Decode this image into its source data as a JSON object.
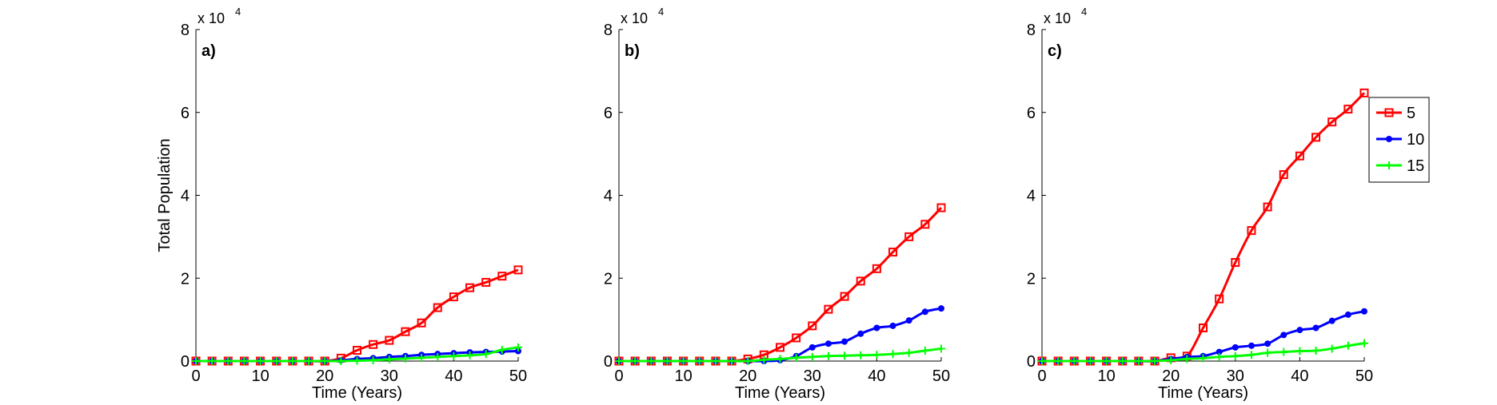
{
  "chart_data": [
    {
      "type": "line",
      "panel_label": "a)",
      "exponent_label": "x 10",
      "exponent_power": "4",
      "xlabel": "Time (Years)",
      "ylabel": "Total Population",
      "xlim": [
        0,
        50
      ],
      "ylim": [
        0,
        8
      ],
      "xticks": [
        0,
        10,
        20,
        30,
        40,
        50
      ],
      "yticks": [
        0,
        2,
        4,
        6,
        8
      ],
      "grid": false,
      "legend": null,
      "series": [
        {
          "name": "5",
          "color": "#ff0000",
          "marker": "square",
          "x": [
            0,
            2.5,
            5,
            7.5,
            10,
            12.5,
            15,
            17.5,
            20,
            22.5,
            25,
            27.5,
            30,
            32.5,
            35,
            37.5,
            40,
            42.5,
            45,
            47.5,
            50
          ],
          "y": [
            0,
            0,
            0,
            0,
            0,
            0,
            0,
            0,
            0,
            0.07,
            0.26,
            0.4,
            0.5,
            0.71,
            0.92,
            1.29,
            1.55,
            1.77,
            1.9,
            2.05,
            2.2
          ]
        },
        {
          "name": "10",
          "color": "#0000ff",
          "marker": "dot",
          "x": [
            0,
            2.5,
            5,
            7.5,
            10,
            12.5,
            15,
            17.5,
            20,
            22.5,
            25,
            27.5,
            30,
            32.5,
            35,
            37.5,
            40,
            42.5,
            45,
            47.5,
            50
          ],
          "y": [
            0,
            0,
            0,
            0,
            0,
            0,
            0,
            0,
            0,
            0.02,
            0.05,
            0.07,
            0.1,
            0.12,
            0.15,
            0.17,
            0.19,
            0.21,
            0.22,
            0.23,
            0.24
          ]
        },
        {
          "name": "15",
          "color": "#00ff00",
          "marker": "plus",
          "x": [
            0,
            2.5,
            5,
            7.5,
            10,
            12.5,
            15,
            17.5,
            20,
            22.5,
            25,
            27.5,
            30,
            32.5,
            35,
            37.5,
            40,
            42.5,
            45,
            47.5,
            50
          ],
          "y": [
            0,
            0,
            0,
            0,
            0,
            0,
            0,
            0,
            0,
            0,
            0.01,
            0.02,
            0.04,
            0.06,
            0.08,
            0.1,
            0.12,
            0.14,
            0.17,
            0.27,
            0.33
          ]
        }
      ]
    },
    {
      "type": "line",
      "panel_label": "b)",
      "exponent_label": "x 10",
      "exponent_power": "4",
      "xlabel": "Time (Years)",
      "ylabel": "",
      "xlim": [
        0,
        50
      ],
      "ylim": [
        0,
        8
      ],
      "xticks": [
        0,
        10,
        20,
        30,
        40,
        50
      ],
      "yticks": [
        0,
        2,
        4,
        6,
        8
      ],
      "grid": false,
      "legend": null,
      "series": [
        {
          "name": "5",
          "color": "#ff0000",
          "marker": "square",
          "x": [
            0,
            2.5,
            5,
            7.5,
            10,
            12.5,
            15,
            17.5,
            20,
            22.5,
            25,
            27.5,
            30,
            32.5,
            35,
            37.5,
            40,
            42.5,
            45,
            47.5,
            50
          ],
          "y": [
            0,
            0,
            0,
            0,
            0,
            0,
            0,
            0,
            0.05,
            0.15,
            0.33,
            0.56,
            0.85,
            1.25,
            1.56,
            1.93,
            2.23,
            2.63,
            3.0,
            3.3,
            3.7
          ]
        },
        {
          "name": "10",
          "color": "#0000ff",
          "marker": "dot",
          "x": [
            0,
            2.5,
            5,
            7.5,
            10,
            12.5,
            15,
            17.5,
            20,
            22.5,
            25,
            27.5,
            30,
            32.5,
            35,
            37.5,
            40,
            42.5,
            45,
            47.5,
            50
          ],
          "y": [
            0,
            0,
            0,
            0,
            0,
            0,
            0,
            0,
            0,
            0,
            0.02,
            0.12,
            0.33,
            0.42,
            0.47,
            0.66,
            0.8,
            0.85,
            0.98,
            1.19,
            1.27
          ]
        },
        {
          "name": "15",
          "color": "#00ff00",
          "marker": "plus",
          "x": [
            0,
            2.5,
            5,
            7.5,
            10,
            12.5,
            15,
            17.5,
            20,
            22.5,
            25,
            27.5,
            30,
            32.5,
            35,
            37.5,
            40,
            42.5,
            45,
            47.5,
            50
          ],
          "y": [
            0,
            0,
            0,
            0,
            0,
            0,
            0,
            0,
            0,
            0.03,
            0.05,
            0.08,
            0.1,
            0.12,
            0.13,
            0.14,
            0.15,
            0.17,
            0.2,
            0.25,
            0.3
          ]
        }
      ]
    },
    {
      "type": "line",
      "panel_label": "c)",
      "exponent_label": "x 10",
      "exponent_power": "4",
      "xlabel": "Time (Years)",
      "ylabel": "",
      "xlim": [
        0,
        50
      ],
      "ylim": [
        0,
        8
      ],
      "xticks": [
        0,
        10,
        20,
        30,
        40,
        50
      ],
      "yticks": [
        0,
        2,
        4,
        6,
        8
      ],
      "grid": false,
      "legend": {
        "placement": "outside-right",
        "entries": [
          "5",
          "10",
          "15"
        ]
      },
      "series": [
        {
          "name": "5",
          "color": "#ff0000",
          "marker": "square",
          "x": [
            0,
            2.5,
            5,
            7.5,
            10,
            12.5,
            15,
            17.5,
            20,
            22.5,
            25,
            27.5,
            30,
            32.5,
            35,
            37.5,
            40,
            42.5,
            45,
            47.5,
            50
          ],
          "y": [
            0,
            0,
            0,
            0,
            0,
            0,
            0,
            0,
            0.08,
            0.12,
            0.8,
            1.5,
            2.38,
            3.15,
            3.72,
            4.5,
            4.95,
            5.4,
            5.77,
            6.08,
            6.47
          ]
        },
        {
          "name": "10",
          "color": "#0000ff",
          "marker": "dot",
          "x": [
            0,
            2.5,
            5,
            7.5,
            10,
            12.5,
            15,
            17.5,
            20,
            22.5,
            25,
            27.5,
            30,
            32.5,
            35,
            37.5,
            40,
            42.5,
            45,
            47.5,
            50
          ],
          "y": [
            0,
            0,
            0,
            0,
            0,
            0,
            0,
            0,
            0.05,
            0.1,
            0.12,
            0.22,
            0.33,
            0.37,
            0.42,
            0.63,
            0.75,
            0.8,
            0.97,
            1.12,
            1.2
          ]
        },
        {
          "name": "15",
          "color": "#00ff00",
          "marker": "plus",
          "x": [
            0,
            2.5,
            5,
            7.5,
            10,
            12.5,
            15,
            17.5,
            20,
            22.5,
            25,
            27.5,
            30,
            32.5,
            35,
            37.5,
            40,
            42.5,
            45,
            47.5,
            50
          ],
          "y": [
            0,
            0,
            0,
            0,
            0,
            0,
            0,
            0,
            0.02,
            0.05,
            0.07,
            0.1,
            0.12,
            0.15,
            0.2,
            0.22,
            0.24,
            0.25,
            0.3,
            0.37,
            0.43
          ]
        }
      ]
    }
  ]
}
